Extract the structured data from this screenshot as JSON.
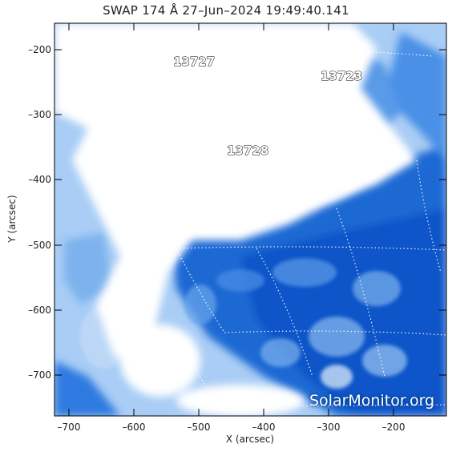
{
  "title": "SWAP 174 Å 27–Jun–2024 19:49:40.141",
  "x_axis_label": "X (arcsec)",
  "y_axis_label": "Y (arcsec)",
  "x_ticks": [
    "–700",
    "–600",
    "–500",
    "–400",
    "–300",
    "–200"
  ],
  "y_ticks": [
    "–200",
    "–300",
    "–400",
    "–500",
    "–600",
    "–700"
  ],
  "regions": [
    "13727",
    "13723",
    "13728"
  ],
  "watermark": "SolarMonitor.org",
  "colors": {
    "dark_blue": "#0a55c8",
    "mid_blue": "#2e7ae0",
    "light_blue": "#9cc6f3",
    "white": "#ffffff"
  }
}
